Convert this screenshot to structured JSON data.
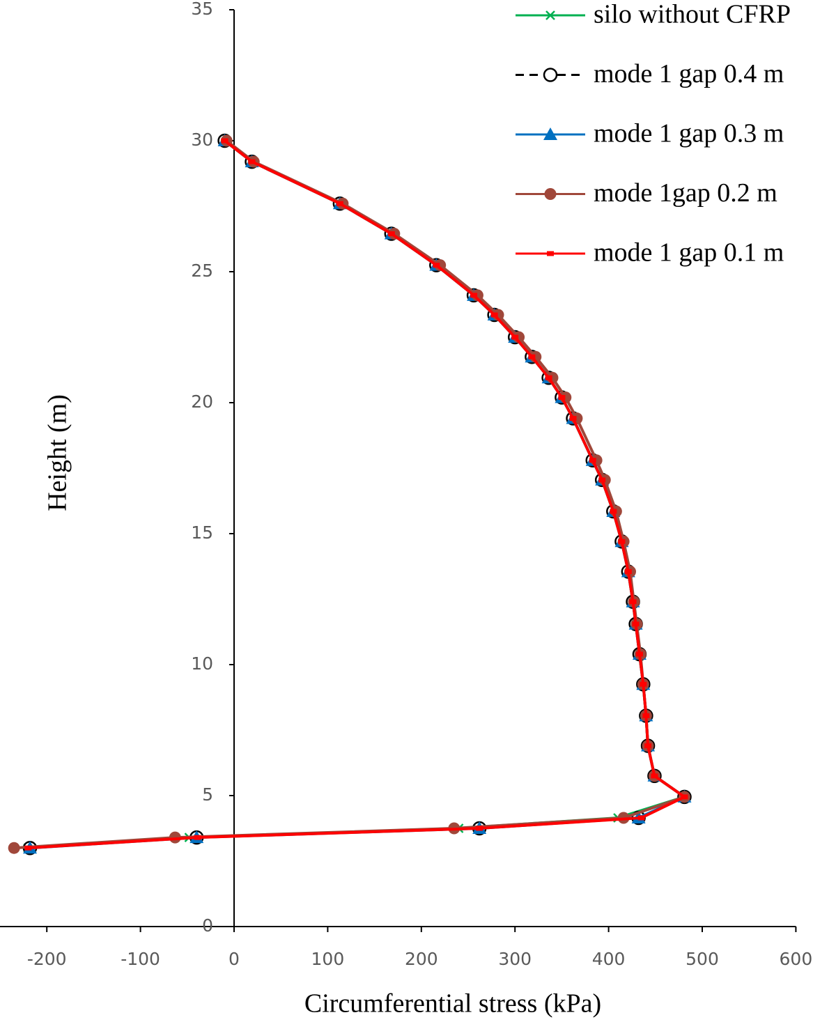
{
  "chart_data": {
    "type": "line",
    "x_label": "Circumferential stress (kPa)",
    "y_label": "Height (m)",
    "xlim": [
      -250,
      600
    ],
    "xticks": [
      -200,
      -100,
      0,
      100,
      200,
      300,
      400,
      500,
      600
    ],
    "ylim": [
      0,
      35
    ],
    "yticks": [
      0,
      5,
      10,
      15,
      20,
      25,
      30,
      35
    ],
    "y": [
      30,
      29.2,
      27.6,
      26.45,
      25.25,
      24.1,
      23.35,
      22.5,
      21.75,
      20.95,
      20.2,
      19.4,
      17.8,
      17.05,
      15.85,
      14.7,
      13.55,
      12.4,
      11.55,
      10.4,
      9.25,
      8.05,
      6.9,
      5.75,
      4.95,
      4.15,
      3.75,
      3.4,
      3.0
    ],
    "legend": "upper right",
    "series": [
      {
        "name": "silo without CFRP",
        "color": "#00b050",
        "marker": "x",
        "dash": false,
        "x": [
          -10,
          19,
          113,
          168,
          216,
          256,
          278,
          300,
          318,
          336,
          350,
          362,
          383,
          393,
          405,
          414,
          421,
          426,
          429,
          433,
          437,
          440,
          442,
          449,
          481,
          410,
          240,
          -48,
          -220
        ]
      },
      {
        "name": "mode 1 gap 0.4 m",
        "color": "#000000",
        "marker": "open-circle",
        "dash": true,
        "x": [
          -10,
          19,
          113,
          168,
          216,
          256,
          278,
          300,
          318,
          336,
          350,
          362,
          383,
          393,
          405,
          414,
          421,
          426,
          429,
          433,
          437,
          440,
          442,
          449,
          481,
          432,
          262,
          -40,
          -218
        ]
      },
      {
        "name": "mode 1 gap 0.3 m",
        "color": "#0070c0",
        "marker": "triangle",
        "dash": false,
        "x": [
          -10,
          19,
          113,
          168,
          216,
          256,
          278,
          300,
          318,
          336,
          350,
          362,
          383,
          393,
          405,
          414,
          421,
          426,
          429,
          433,
          437,
          440,
          442,
          449,
          481,
          432,
          262,
          -40,
          -218
        ]
      },
      {
        "name": "mode 1gap 0.2 m",
        "color": "#a0473a",
        "marker": "circle",
        "dash": false,
        "x": [
          -8,
          21,
          116,
          171,
          220,
          260,
          282,
          304,
          322,
          340,
          354,
          366,
          387,
          396,
          408,
          416,
          423,
          427,
          430,
          434,
          437,
          440,
          442,
          449,
          481,
          416,
          235,
          -63,
          -235
        ]
      },
      {
        "name": "mode 1 gap 0.1 m",
        "color": "#ff0000",
        "marker": "square",
        "dash": false,
        "x": [
          -10,
          19,
          113,
          168,
          216,
          256,
          278,
          300,
          318,
          336,
          350,
          362,
          383,
          393,
          405,
          414,
          421,
          426,
          429,
          433,
          437,
          440,
          442,
          449,
          481,
          435,
          262,
          -39,
          -220
        ]
      }
    ]
  }
}
